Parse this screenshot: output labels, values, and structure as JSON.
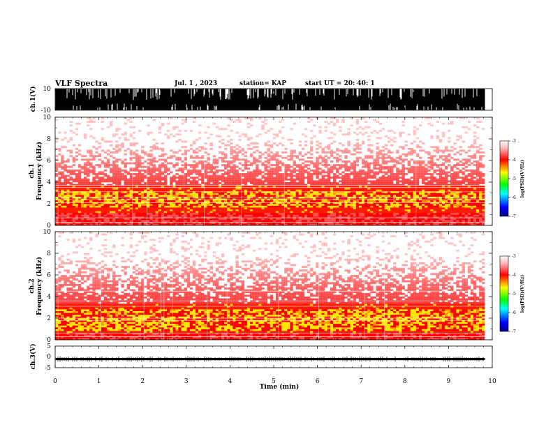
{
  "header": {
    "title": "VLF Spectra",
    "date": "Jul. 1 , 2023",
    "station": "station= KAP",
    "start_time": "start UT = 20: 40: 1"
  },
  "colors": {
    "spectrogram_low": "#ff0000",
    "spectrogram_mid": "#ffff00",
    "colormap": [
      "#000080",
      "#0000ff",
      "#00ffff",
      "#00ff00",
      "#ffff00",
      "#ff0000",
      "#ffc8c8",
      "#ffffff"
    ]
  },
  "chart_data": [
    {
      "type": "line",
      "id": "ch1_waveform",
      "ylabel": "ch.1(V)",
      "ylim": [
        -10,
        10
      ],
      "yticks": [
        "10",
        "-10"
      ],
      "description_series": "saturated VLF waveform, continuous",
      "x_range_min": [
        0,
        9.83
      ]
    },
    {
      "type": "heatmap",
      "id": "ch1_spectrogram",
      "ylabel": "ch.1 Frequency (kHz)",
      "ylabel_lines": [
        "ch.1",
        "Frequency (kHz)"
      ],
      "ylim": [
        0,
        10
      ],
      "yticks": [
        "0",
        "2",
        "4",
        "6",
        "8",
        "10"
      ],
      "x_range_min": [
        0,
        9.83
      ],
      "intense_band_khz": [
        1.2,
        3.6
      ],
      "intense_core_khz": [
        1.6,
        3.2
      ],
      "horizontal_lines_khz": [
        0.3,
        0.7,
        2.1,
        2.4,
        2.6,
        3.1,
        3.5,
        3.7
      ],
      "colorbar": {
        "label": "log(PSD)(V²/Hz)",
        "ticks": [
          "-3",
          "-4",
          "-5",
          "-6",
          "-7"
        ],
        "range": [
          -7,
          -3
        ]
      }
    },
    {
      "type": "heatmap",
      "id": "ch2_spectrogram",
      "ylabel": "ch.2 Frequency (kHz)",
      "ylabel_lines": [
        "ch.2",
        "Frequency (kHz)"
      ],
      "ylim": [
        0,
        10
      ],
      "yticks": [
        "0",
        "2",
        "4",
        "6",
        "8",
        "10"
      ],
      "x_range_min": [
        0,
        9.83
      ],
      "intense_band_khz": [
        0.6,
        3.4
      ],
      "intense_core_khz": [
        0.8,
        2.9
      ],
      "horizontal_lines_khz": [
        0.3,
        0.6,
        1.8,
        2.0,
        3.1,
        3.6,
        4.5
      ],
      "colorbar": {
        "label": "log(PSD)(V²/Hz)",
        "ticks": [
          "-3",
          "-4",
          "-5",
          "-6",
          "-7"
        ],
        "range": [
          -7,
          -3
        ]
      }
    },
    {
      "type": "line",
      "id": "ch3_waveform",
      "ylabel": "ch.3(V)",
      "ylim": [
        -5,
        5
      ],
      "yticks": [
        "5",
        "0",
        "-5"
      ],
      "signal_level_v": -1,
      "signal_amplitude_v": 0.5,
      "x_range_min": [
        0,
        9.83
      ]
    }
  ],
  "x_axis": {
    "label": "Time (min)",
    "xlim": [
      0,
      10
    ],
    "ticks": [
      "0",
      "1",
      "2",
      "3",
      "4",
      "5",
      "6",
      "7",
      "8",
      "9",
      "10"
    ]
  }
}
